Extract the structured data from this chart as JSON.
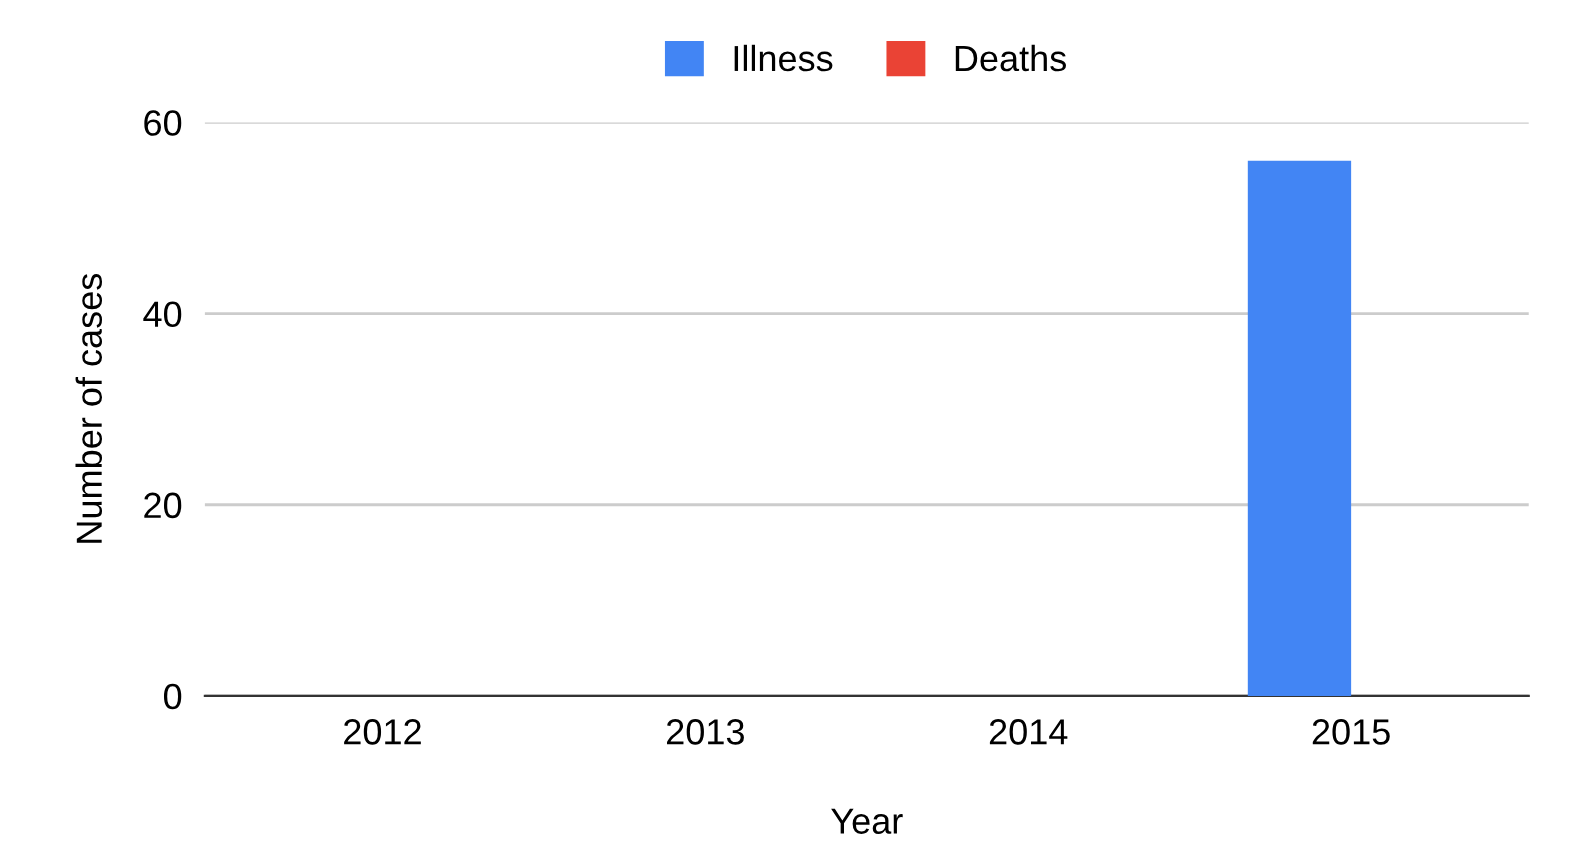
{
  "chart_data": {
    "type": "bar",
    "xlabel": "Year",
    "ylabel": "Number of cases",
    "categories": [
      "2012",
      "2013",
      "2014",
      "2015"
    ],
    "series": [
      {
        "name": "Illness",
        "color": "#4285f4",
        "values": [
          0,
          0,
          0,
          56
        ]
      },
      {
        "name": "Deaths",
        "color": "#ea4335",
        "values": [
          0,
          0,
          0,
          0
        ]
      }
    ],
    "ylim": [
      0,
      60
    ],
    "yticks": [
      0,
      20,
      40,
      60
    ],
    "grid": "y",
    "legend": "top"
  }
}
